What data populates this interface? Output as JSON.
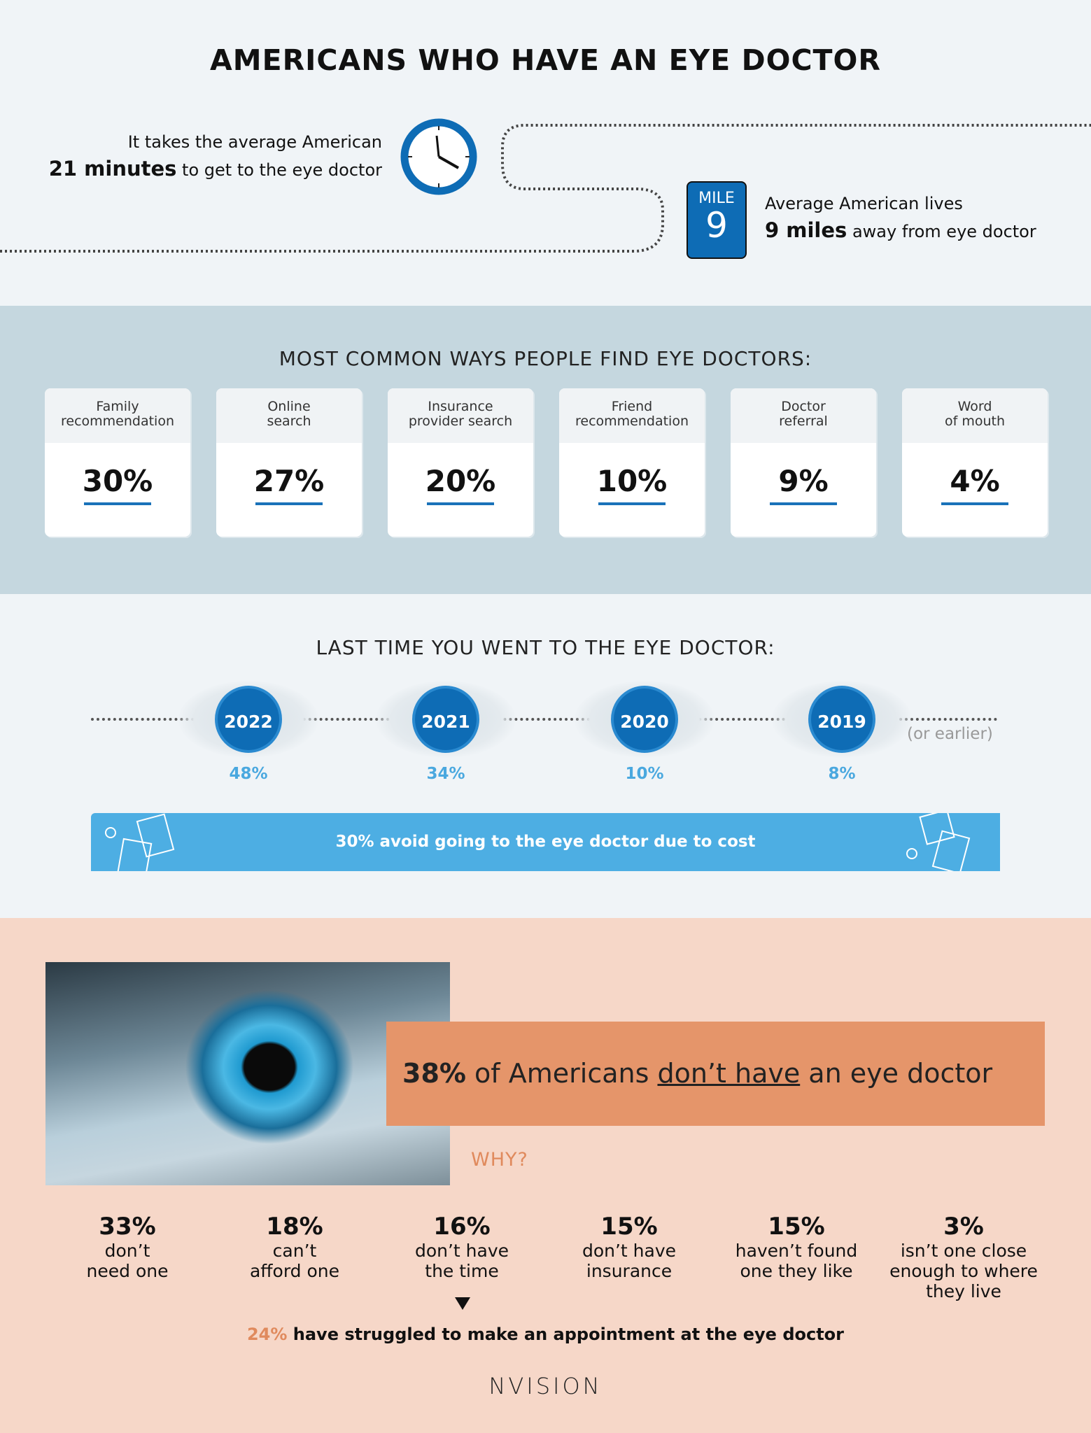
{
  "title": "AMERICANS WHO HAVE AN EYE DOCTOR",
  "travel": {
    "line1": "It takes the average American",
    "minutes_bold": "21 minutes",
    "minutes_rest": " to get to the eye doctor",
    "mile_label": "MILE",
    "mile_number": "9",
    "miles_line1": "Average American lives",
    "miles_bold": "9 miles",
    "miles_rest": " away from eye doctor"
  },
  "find": {
    "title": "MOST COMMON WAYS PEOPLE FIND EYE DOCTORS:",
    "items": [
      {
        "label": "Family\nrecommendation",
        "value": "30%"
      },
      {
        "label": "Online\nsearch",
        "value": "27%"
      },
      {
        "label": "Insurance\nprovider search",
        "value": "20%"
      },
      {
        "label": "Friend\nrecommendation",
        "value": "10%"
      },
      {
        "label": "Doctor\nreferral",
        "value": "9%"
      },
      {
        "label": "Word\nof mouth",
        "value": "4%"
      }
    ]
  },
  "last": {
    "title": "LAST TIME YOU WENT TO THE EYE DOCTOR:",
    "items": [
      {
        "year": "2022",
        "value": "48%"
      },
      {
        "year": "2021",
        "value": "34%"
      },
      {
        "year": "2020",
        "value": "10%"
      },
      {
        "year": "2019",
        "value": "8%"
      }
    ],
    "earlier": "(or earlier)"
  },
  "cost_banner": "30% avoid going to the eye doctor due to cost",
  "no_doctor": {
    "pct": "38%",
    "pre": " of Americans ",
    "underlined": "don’t have",
    "post": " an eye doctor"
  },
  "why": "WHY?",
  "reasons": [
    {
      "pct": "33%",
      "label": "don’t\nneed one"
    },
    {
      "pct": "18%",
      "label": "can’t\nafford one"
    },
    {
      "pct": "16%",
      "label": "don’t have\nthe time"
    },
    {
      "pct": "15%",
      "label": "don’t have\ninsurance"
    },
    {
      "pct": "15%",
      "label": "haven’t found\none they like"
    },
    {
      "pct": "3%",
      "label": "isn’t one close\nenough to where\nthey live"
    }
  ],
  "appointment": {
    "pct": "24%",
    "rest": " have struggled to make an appointment at the eye doctor"
  },
  "logo": "NVISION",
  "colors": {
    "blue": "#0e6cb5",
    "light_blue": "#4daee3",
    "orange": "#e5956a",
    "peach": "#f6d7c8",
    "steel": "#c5d7df"
  }
}
